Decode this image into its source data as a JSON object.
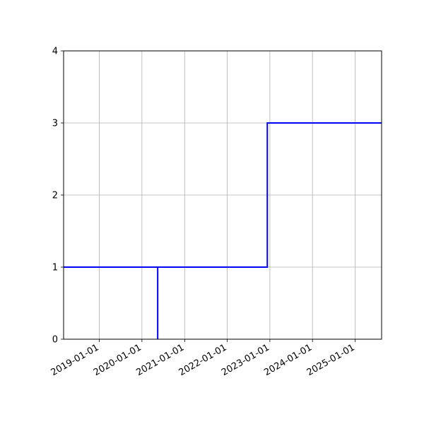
{
  "chart_data": {
    "type": "line",
    "step": true,
    "grid": true,
    "xlim": [
      "2018-03-01",
      "2025-08-15"
    ],
    "ylim": [
      0,
      4
    ],
    "xticks": [
      "2019-01-01",
      "2020-01-01",
      "2021-01-01",
      "2022-01-01",
      "2023-01-01",
      "2024-01-01",
      "2025-01-01"
    ],
    "yticks": [
      0,
      1,
      2,
      3,
      4
    ],
    "series": [
      {
        "color": "#0000ff",
        "points": [
          {
            "x": "2018-03-01",
            "y": 1
          },
          {
            "x": "2020-05-15",
            "y": 1
          },
          {
            "x": "2020-05-15",
            "y": 0
          },
          {
            "x": "2020-05-15",
            "y": 1
          },
          {
            "x": "2022-12-10",
            "y": 1
          },
          {
            "x": "2022-12-10",
            "y": 3
          },
          {
            "x": "2025-08-15",
            "y": 3
          }
        ]
      }
    ],
    "title": "",
    "xlabel": "",
    "ylabel": ""
  }
}
